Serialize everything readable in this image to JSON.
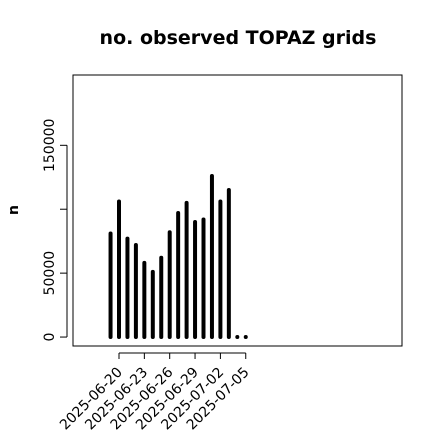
{
  "chart_data": {
    "type": "bar",
    "title": "no. observed TOPAZ grids",
    "xlabel": "",
    "ylabel": "n",
    "ylim": [
      -7000,
      205000
    ],
    "yticks": [
      0,
      50000,
      100000,
      150000
    ],
    "ytick_labels": [
      "0",
      "50000",
      "",
      "150000"
    ],
    "x": [
      "2025-06-19",
      "2025-06-20",
      "2025-06-21",
      "2025-06-22",
      "2025-06-23",
      "2025-06-24",
      "2025-06-25",
      "2025-06-26",
      "2025-06-27",
      "2025-06-28",
      "2025-06-29",
      "2025-06-30",
      "2025-07-01",
      "2025-07-02",
      "2025-07-03",
      "2025-07-04",
      "2025-07-05"
    ],
    "values": [
      81000,
      106000,
      77000,
      72000,
      58000,
      51000,
      62000,
      82000,
      97000,
      105000,
      90000,
      92000,
      126000,
      106000,
      115000,
      0,
      0
    ],
    "xtick_labels": [
      {
        "x": "2025-06-20",
        "label": "2025-06-20",
        "color": "#000000"
      },
      {
        "x": "2025-06-23",
        "label": "2025-06-23",
        "color": "#000000"
      },
      {
        "x": "2025-06-26",
        "label": "2025-06-26",
        "color": "#228B22"
      },
      {
        "x": "2025-06-29",
        "label": "2025-06-29",
        "color": "#000000"
      },
      {
        "x": "2025-07-02",
        "label": "2025-07-02",
        "color": "#000000"
      },
      {
        "x": "2025-07-05",
        "label": "2025-07-05",
        "color": "#000000"
      }
    ],
    "grid": false,
    "bar_color": "#000000"
  }
}
